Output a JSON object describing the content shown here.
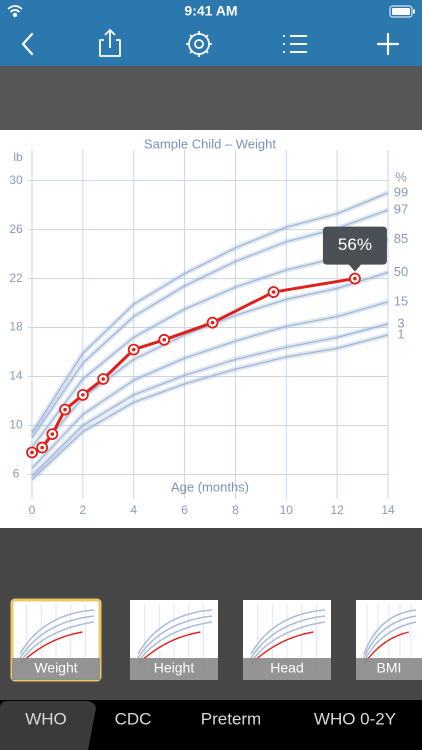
{
  "status_bar": {
    "time": "9:41 AM"
  },
  "chart_data": {
    "type": "line",
    "title": "Sample Child – Weight",
    "x_label": "Age (months)",
    "y_label": "lb",
    "x": [
      0,
      0.4,
      0.8,
      1.3,
      2.0,
      2.8,
      4.0,
      5.2,
      7.1,
      9.5,
      12.7
    ],
    "values": [
      7.8,
      8.2,
      9.3,
      11.3,
      12.5,
      13.8,
      16.2,
      17.0,
      18.4,
      20.9,
      22.0
    ],
    "color": "#e0201a",
    "callout": "56%",
    "xlim": [
      0,
      14
    ],
    "ylim": [
      4,
      32.5
    ],
    "xticks": [
      0,
      2,
      4,
      6,
      8,
      10,
      12,
      14
    ],
    "yticks": [
      6,
      10,
      14,
      18,
      22,
      26,
      30
    ],
    "grid": true,
    "percentiles": {
      "header": "%",
      "color": "#9fb6d6",
      "x": [
        0,
        2,
        4,
        6,
        8,
        10,
        12,
        14
      ],
      "series": [
        {
          "name": "99",
          "values": [
            9.4,
            15.9,
            19.9,
            22.4,
            24.5,
            26.2,
            27.3,
            29.0
          ]
        },
        {
          "name": "97",
          "values": [
            9.0,
            15.1,
            18.9,
            21.4,
            23.4,
            25.0,
            26.1,
            27.6
          ]
        },
        {
          "name": "85",
          "values": [
            8.2,
            13.8,
            17.2,
            19.5,
            21.3,
            22.7,
            23.7,
            25.2
          ]
        },
        {
          "name": "50",
          "values": [
            7.3,
            12.3,
            15.4,
            17.4,
            19.0,
            20.3,
            21.2,
            22.5
          ]
        },
        {
          "name": "15",
          "values": [
            6.5,
            10.9,
            13.7,
            15.5,
            16.9,
            18.1,
            18.9,
            20.1
          ]
        },
        {
          "name": "3",
          "values": [
            5.9,
            10.0,
            12.5,
            14.1,
            15.4,
            16.4,
            17.2,
            18.3
          ]
        },
        {
          "name": "1",
          "values": [
            5.6,
            9.5,
            11.9,
            13.4,
            14.6,
            15.6,
            16.3,
            17.4
          ]
        }
      ]
    }
  },
  "thumbnails": [
    "Weight",
    "Height",
    "Head",
    "BMI"
  ],
  "tabs": [
    "WHO",
    "CDC",
    "Preterm",
    "WHO 0-2Y"
  ]
}
